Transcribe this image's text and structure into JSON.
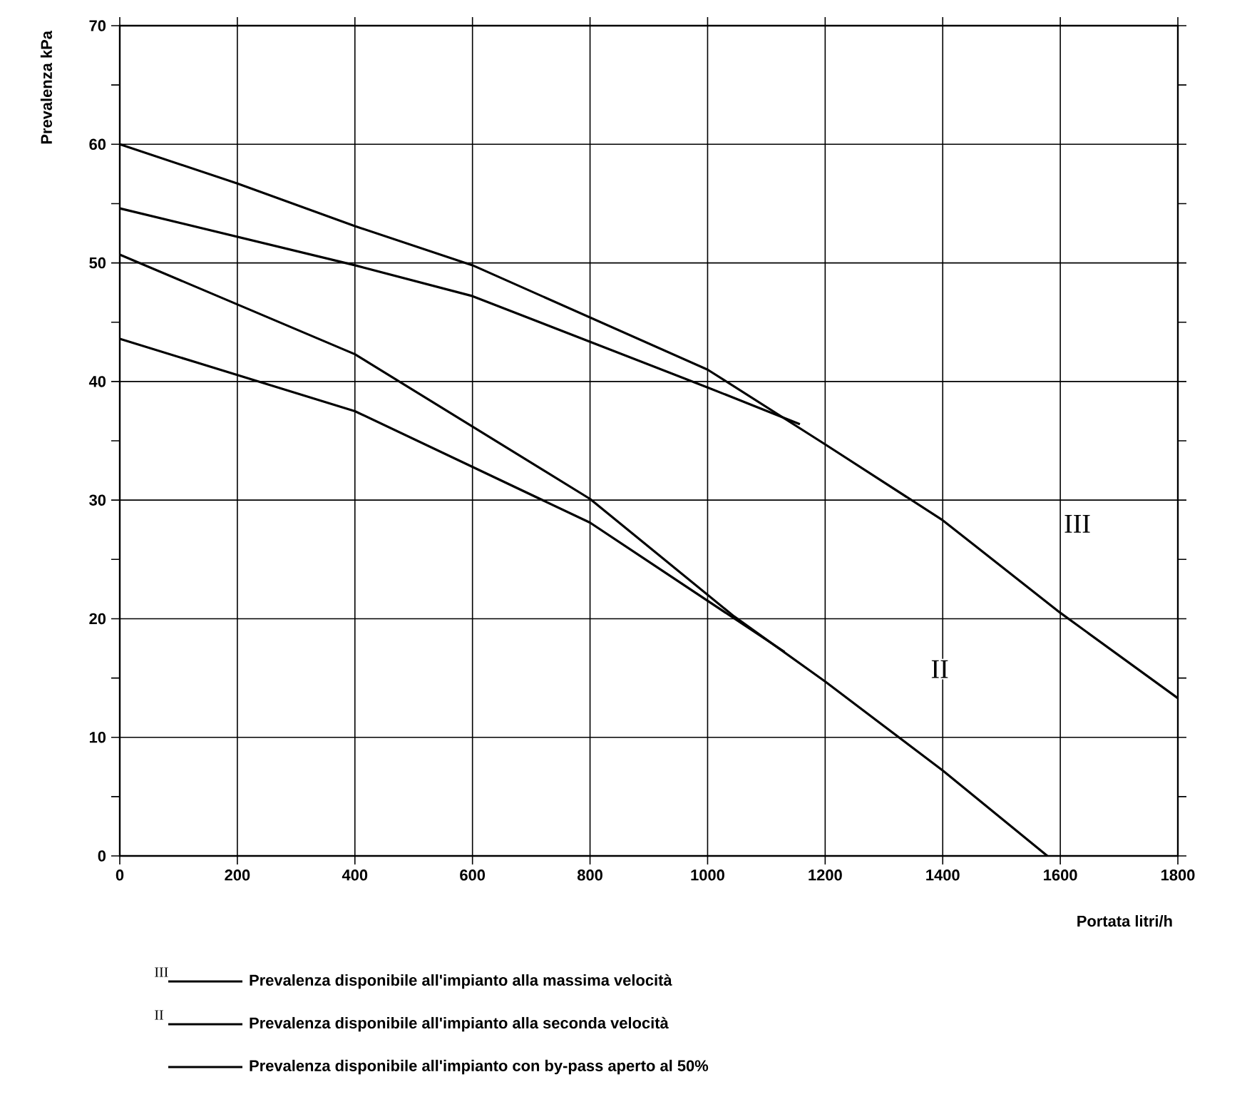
{
  "chart_data": {
    "type": "line",
    "xlabel": "Portata litri/h",
    "ylabel": "Prevalenza kPa",
    "xlim": [
      0,
      1800
    ],
    "ylim": [
      0,
      70
    ],
    "xticks": [
      0,
      200,
      400,
      600,
      800,
      1000,
      1200,
      1400,
      1600,
      1800
    ],
    "yticks": [
      0,
      10,
      20,
      30,
      40,
      50,
      60,
      70,
      {
        "value": 5,
        "label": null
      },
      {
        "value": 15,
        "label": null
      },
      {
        "value": 25,
        "label": null
      },
      {
        "value": 35,
        "label": null
      },
      {
        "value": 45,
        "label": null
      },
      {
        "value": 55,
        "label": null
      },
      {
        "value": 65,
        "label": null
      }
    ],
    "grid": true,
    "legend": "bottom",
    "marker": "none",
    "line_style": "solid",
    "series": [
      {
        "name": "Prevalenza disponibile all'impianto alla massima velocità",
        "color": "#000000",
        "x": [
          0,
          200,
          400,
          600,
          1000,
          1200,
          1400,
          1600,
          1800
        ],
        "values": [
          60,
          56.7,
          53.1,
          49.8,
          41,
          34.7,
          28.3,
          20.5,
          13.3
        ]
      },
      {
        "name": "Prevalenza disponibile all'impianto alla seconda velocità",
        "color": "#000000",
        "x": [
          0,
          400,
          800,
          1045,
          1200,
          1400,
          1578
        ],
        "values": [
          50.7,
          42.3,
          30.1,
          20.2,
          14.7,
          7.2,
          0
        ]
      },
      {
        "name": "Prevalenza disponibile all'impianto con by-pass aperto al 50%",
        "color": "#000000",
        "x": [
          0,
          400,
          600,
          1000,
          1157
        ],
        "values": [
          54.6,
          49.8,
          47.2,
          39.5,
          36.4
        ]
      },
      {
        "color": "#000000",
        "x": [
          0,
          400,
          800,
          1131
        ],
        "values": [
          43.6,
          37.5,
          28.1,
          17.2
        ]
      }
    ],
    "annotations": [
      "III",
      "II",
      "III",
      "II"
    ]
  }
}
